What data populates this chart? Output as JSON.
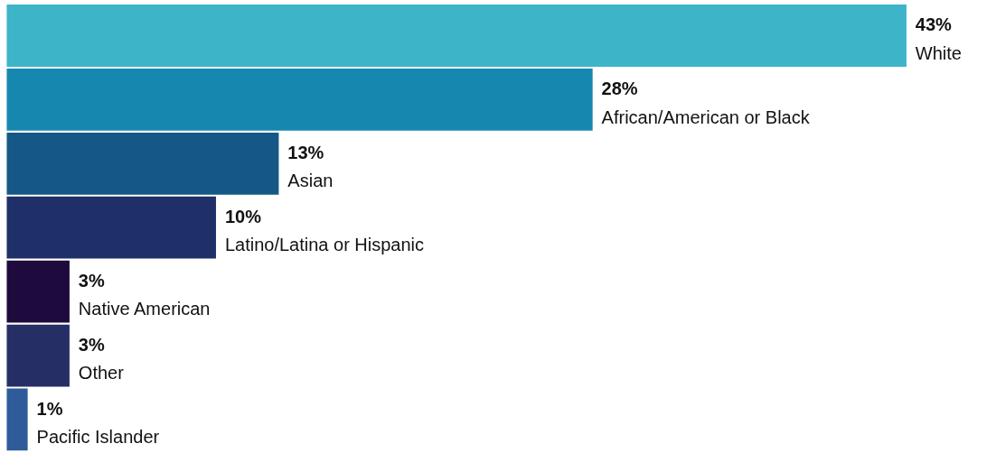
{
  "chart_data": {
    "type": "bar",
    "orientation": "horizontal",
    "categories": [
      "White",
      "African/American or Black",
      "Asian",
      "Latino/Latina or Hispanic",
      "Native American",
      "Other",
      "Pacific Islander"
    ],
    "values": [
      43,
      28,
      13,
      10,
      3,
      3,
      1
    ],
    "colors": [
      "#3db4c8",
      "#1688b0",
      "#155887",
      "#1f3068",
      "#1e0a3c",
      "#262e66",
      "#2e5c9a"
    ],
    "value_labels": [
      "43%",
      "28%",
      "13%",
      "10%",
      "3%",
      "3%",
      "1%"
    ],
    "grid": false,
    "tick_labels": false
  }
}
